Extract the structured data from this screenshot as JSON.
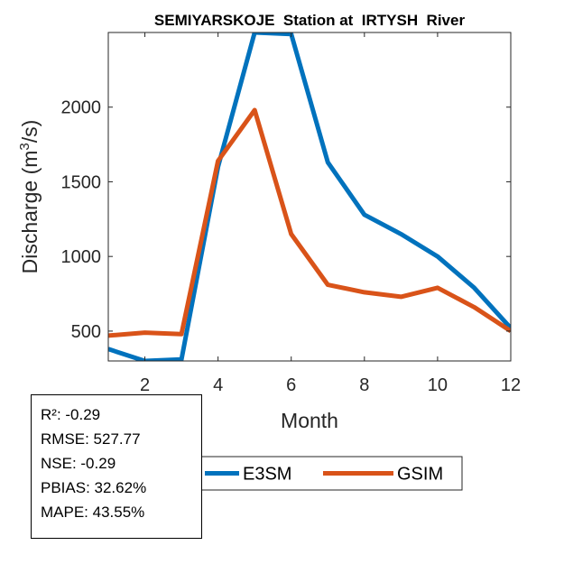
{
  "chart_data": {
    "type": "line",
    "title": "SEMIYARSKOJE  Station at  IRTYSH  River",
    "xlabel": "Month",
    "ylabel": {
      "prefix": "Discharge (m",
      "sup": "3",
      "suffix": "/s)"
    },
    "x": [
      1,
      2,
      3,
      4,
      5,
      6,
      7,
      8,
      9,
      10,
      11,
      12
    ],
    "xlim": [
      1,
      12
    ],
    "ylim": [
      300,
      2500
    ],
    "xticks": [
      2,
      4,
      6,
      8,
      10,
      12
    ],
    "yticks": [
      500,
      1000,
      1500,
      2000
    ],
    "series": [
      {
        "name": "E3SM",
        "color": "#0072BD",
        "values": [
          380,
          300,
          310,
          1600,
          2500,
          2490,
          1630,
          1280,
          1150,
          1000,
          790,
          520
        ]
      },
      {
        "name": "GSIM",
        "color": "#D95319",
        "values": [
          470,
          490,
          480,
          1640,
          1980,
          1150,
          810,
          760,
          730,
          790,
          660,
          500
        ]
      }
    ],
    "legend_position": "bottom",
    "grid": false
  },
  "stats": [
    {
      "text": "R²: -0.29"
    },
    {
      "text": "RMSE: 527.77"
    },
    {
      "text": "NSE: -0.29"
    },
    {
      "text": "PBIAS: 32.62%"
    },
    {
      "text": "MAPE: 43.55%"
    }
  ]
}
